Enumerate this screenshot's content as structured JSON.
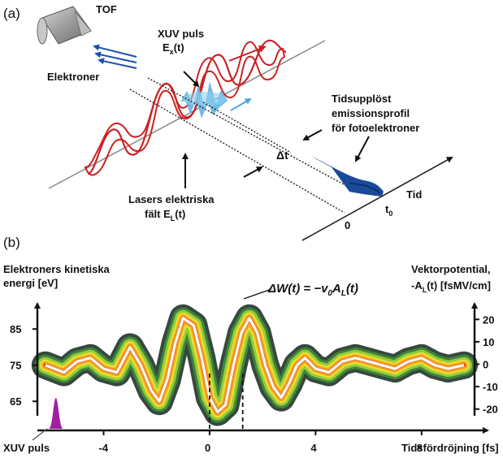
{
  "panel_a": {
    "panel_label": "(a)",
    "tof_label": "TOF",
    "electrons_label": "Elektroner",
    "xuv_line1": "XUV puls",
    "xuv_line2_main": "E",
    "xuv_line2_sub": "x",
    "xuv_line2_end": "(t)",
    "profile_line1": "Tidsupplöst",
    "profile_line2": "emissionsprofil",
    "profile_line3": "för fotoelektroner",
    "delta_t": "Δt",
    "laser_line1": "Lasers elektriska",
    "laser_line2_main": "fält E",
    "laser_line2_sub": "L",
    "laser_line2_end": "(t)",
    "time_label": "Tid",
    "t0_main": "t",
    "t0_sub": "0",
    "zero_label": "0"
  },
  "panel_b": {
    "panel_label": "(b)",
    "ylabel_left_line1": "Elektroners kinetiska",
    "ylabel_left_line2": "energi [eV]",
    "ylabel_right_line1": "Vektorpotential,",
    "ylabel_right_line2_a": "-A",
    "ylabel_right_line2_sub": "L",
    "ylabel_right_line2_b": "(t) [fsMV/cm]",
    "equation_a": "ΔW(t) = −v",
    "equation_sub1": "0",
    "equation_b": "A",
    "equation_sub2": "L",
    "equation_c": "(t)",
    "xlabel": "Tidsfördröjning [fs]",
    "xuv_pulse_label": "XUV puls",
    "colors": {
      "trace": "#ffffff",
      "xuv_pulse": "#a020a0",
      "field": "#cc2222",
      "profile": "#1a4a9a",
      "xuv": "#55aadd"
    }
  },
  "chart_data": {
    "type": "line",
    "title": "",
    "xlabel": "Tidsfördröjning [fs]",
    "ylabel": "Elektroners kinetiska energi [eV]",
    "y2label": "Vektorpotential, -A_L(t) [fsMV/cm]",
    "xlim": [
      -6.5,
      10
    ],
    "ylim": [
      61,
      92
    ],
    "y2lim": [
      -23,
      27
    ],
    "x_ticks": [
      "-4",
      "0",
      "4",
      "8"
    ],
    "x_tick_values": [
      -4,
      0,
      4,
      8
    ],
    "y_ticks": [
      "65",
      "75",
      "85"
    ],
    "y_tick_values": [
      65,
      75,
      85
    ],
    "y2_ticks": [
      "20",
      "10",
      "0",
      "-10",
      "-20"
    ],
    "y2_tick_values": [
      20,
      10,
      0,
      -10,
      -20
    ],
    "series": [
      {
        "x": [
          -6.2,
          -5.5,
          -5.0,
          -4.5,
          -4.0,
          -3.5,
          -3.0,
          -2.6,
          -2.2,
          -1.9,
          -1.6,
          -1.3,
          -1.0,
          -0.6,
          -0.3,
          0.0,
          0.3,
          0.6,
          0.9,
          1.2,
          1.5,
          1.8,
          2.1,
          2.4,
          2.7,
          3.0,
          3.3,
          3.6,
          4.0,
          4.5,
          5.0,
          5.5,
          6.0,
          6.5,
          7.0,
          7.5,
          8.0,
          8.5,
          9.0,
          9.6
        ],
        "values": [
          75,
          73,
          76,
          77,
          74,
          73,
          80,
          75,
          68,
          65,
          71,
          81,
          88,
          86,
          77,
          66,
          62,
          64,
          75,
          84,
          88,
          84,
          75,
          69,
          66,
          70,
          75,
          77,
          74,
          73,
          76,
          77,
          76,
          75,
          74,
          76,
          77,
          75,
          74,
          75
        ]
      }
    ]
  }
}
